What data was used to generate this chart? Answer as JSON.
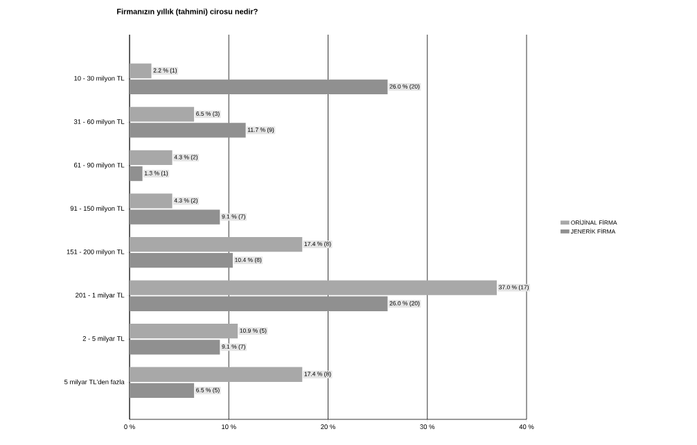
{
  "chart_data": {
    "type": "bar",
    "orientation": "horizontal",
    "title": "Firmanızın yıllık (tahmini) cirosu nedir?",
    "categories": [
      "10 - 30 milyon TL",
      "31 - 60 milyon TL",
      "61 - 90 milyon TL",
      "91 - 150 milyon TL",
      "151 - 200 milyon TL",
      "201 - 1 milyar TL",
      "2 - 5 milyar TL",
      "5 milyar TL'den fazla"
    ],
    "series": [
      {
        "name": "ORİJİNAL FİRMA",
        "color": "#a8a8a8",
        "values": [
          2.2,
          6.5,
          4.3,
          4.3,
          17.4,
          37.0,
          10.9,
          17.4
        ],
        "value_labels": [
          "2.2 % (1)",
          "6.5 % (3)",
          "4.3 % (2)",
          "4.3 % (2)",
          "17.4 % (8)",
          "37.0 % (17)",
          "10.9 % (5)",
          "17.4 % (8)"
        ]
      },
      {
        "name": "JENERİK FİRMA",
        "color": "#909090",
        "values": [
          26.0,
          11.7,
          1.3,
          9.1,
          10.4,
          26.0,
          9.1,
          6.5
        ],
        "value_labels": [
          "26.0 % (20)",
          "11.7 % (9)",
          "1.3 % (1)",
          "9.1 % (7)",
          "10.4 % (8)",
          "26.0 % (20)",
          "9.1 % (7)",
          "6.5 % (5)"
        ]
      }
    ],
    "xlim": [
      0,
      40
    ],
    "xticks": [
      {
        "value": 0,
        "label": "0 %"
      },
      {
        "value": 10,
        "label": "10 %"
      },
      {
        "value": 20,
        "label": "20 %"
      },
      {
        "value": 30,
        "label": "30 %"
      },
      {
        "value": 40,
        "label": "40 %"
      }
    ],
    "grid": "x",
    "legend": "right"
  }
}
